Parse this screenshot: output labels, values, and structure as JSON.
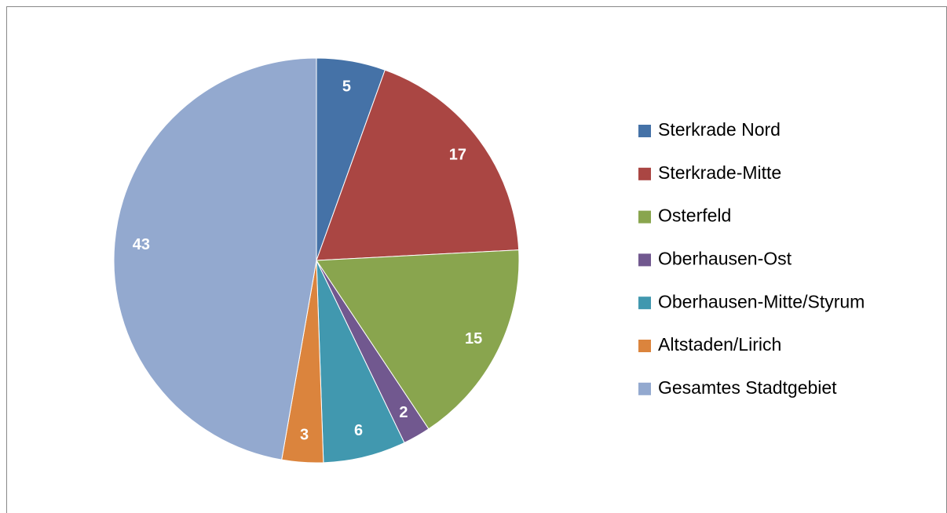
{
  "chart_data": {
    "type": "pie",
    "categories": [
      "Sterkrade Nord",
      "Sterkrade-Mitte",
      "Osterfeld",
      "Oberhausen-Ost",
      "Oberhausen-Mitte/Styrum",
      "Altstaden/Lirich",
      "Gesamtes Stadtgebiet"
    ],
    "values": [
      5,
      17,
      15,
      2,
      6,
      3,
      43
    ],
    "colors": [
      "#4572a7",
      "#aa4643",
      "#89a54e",
      "#71588f",
      "#4198af",
      "#db843d",
      "#93a9cf"
    ],
    "legend": "right"
  }
}
